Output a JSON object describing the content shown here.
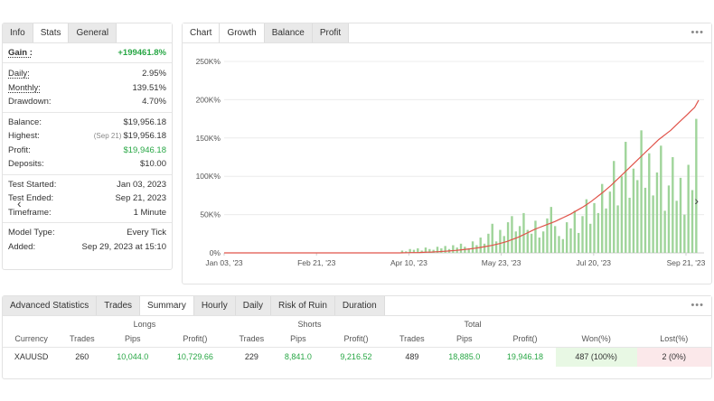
{
  "left_panel": {
    "tabs": [
      "Info",
      "Stats",
      "General"
    ],
    "active_tab": 1,
    "gain": {
      "label": "Gain :",
      "value": "+199461.8%"
    },
    "group1": [
      {
        "label": "Daily:",
        "value": "2.95%",
        "underline": true
      },
      {
        "label": "Monthly:",
        "value": "139.51%",
        "underline": true
      },
      {
        "label": "Drawdown:",
        "value": "4.70%",
        "underline": false
      }
    ],
    "group2": [
      {
        "label": "Balance:",
        "value": "$19,956.18"
      },
      {
        "label": "Highest:",
        "note": "(Sep 21)",
        "value": "$19,956.18"
      },
      {
        "label": "Profit:",
        "value": "$19,946.18",
        "green": true
      },
      {
        "label": "Deposits:",
        "value": "$10.00"
      }
    ],
    "group3": [
      {
        "label": "Test Started:",
        "value": "Jan 03, 2023"
      },
      {
        "label": "Test Ended:",
        "value": "Sep 21, 2023"
      },
      {
        "label": "Timeframe:",
        "value": "1 Minute"
      }
    ],
    "group4": [
      {
        "label": "Model Type:",
        "value": "Every Tick"
      },
      {
        "label": "Added:",
        "value": "Sep 29, 2023 at 15:10"
      }
    ],
    "prev_arrow": "‹"
  },
  "chart_panel": {
    "tabs": [
      "Chart",
      "Growth",
      "Balance",
      "Profit"
    ],
    "active_tab": 1,
    "menu": "•••",
    "next_arrow": "›"
  },
  "chart_data": {
    "type": "line",
    "x_tick_labels": [
      "Jan 03, '23",
      "Feb 21, '23",
      "Apr 10, '23",
      "May 23, '23",
      "Jul 20, '23",
      "Sep 21, '23"
    ],
    "y_tick_labels": [
      "0%",
      "50K%",
      "100K%",
      "150K%",
      "200K%",
      "250K%"
    ],
    "ylim": [
      0,
      250000
    ],
    "grid": true,
    "series": [
      {
        "color": "#e0534a",
        "kind": "line",
        "values": [
          0,
          0,
          0,
          0,
          0,
          0,
          0,
          0,
          0,
          0,
          0,
          0,
          0,
          0,
          0,
          0,
          0,
          0,
          0,
          0,
          0,
          0,
          0,
          0,
          0,
          0,
          0,
          0,
          0,
          0,
          0,
          0,
          0,
          0,
          0,
          0,
          0,
          0,
          0,
          0,
          0,
          0,
          0,
          0,
          0,
          100,
          200,
          300,
          400,
          500,
          700,
          900,
          1100,
          1400,
          1700,
          2000,
          2400,
          2800,
          3200,
          3700,
          4200,
          4800,
          5400,
          6100,
          6900,
          7800,
          8700,
          9700,
          10800,
          12000,
          13500,
          15000,
          17000,
          19000,
          21000,
          23500,
          26000,
          28500,
          31000,
          33000,
          35000,
          37000,
          39000,
          41000,
          43500,
          46000,
          48500,
          51000,
          54000,
          57000,
          60000,
          63500,
          67000,
          71000,
          75000,
          79000,
          83500,
          88000,
          93000,
          98000,
          103000,
          108000,
          113000,
          118000,
          123000,
          128000,
          133000,
          138000,
          143000,
          148000,
          152000,
          156000,
          160000,
          165000,
          170000,
          175000,
          180000,
          185000,
          190000,
          199461
        ]
      },
      {
        "color": "#9fd49a",
        "kind": "bar",
        "values": [
          0,
          0,
          0,
          0,
          0,
          0,
          0,
          0,
          0,
          0,
          0,
          0,
          0,
          0,
          0,
          0,
          0,
          0,
          0,
          0,
          0,
          0,
          0,
          0,
          0,
          0,
          0,
          0,
          0,
          0,
          0,
          0,
          0,
          0,
          0,
          0,
          0,
          0,
          0,
          0,
          0,
          0,
          0,
          0,
          0,
          3000,
          2000,
          5000,
          4000,
          6000,
          3000,
          7000,
          5000,
          4000,
          8000,
          6000,
          9000,
          5000,
          10000,
          7000,
          12000,
          8000,
          6000,
          15000,
          10000,
          20000,
          12000,
          25000,
          38000,
          15000,
          30000,
          22000,
          40000,
          48000,
          28000,
          35000,
          52000,
          30000,
          25000,
          42000,
          20000,
          28000,
          45000,
          60000,
          35000,
          22000,
          18000,
          40000,
          32000,
          55000,
          26000,
          48000,
          70000,
          38000,
          65000,
          52000,
          90000,
          58000,
          80000,
          120000,
          62000,
          100000,
          145000,
          72000,
          110000,
          95000,
          160000,
          85000,
          130000,
          75000,
          105000,
          140000,
          55000,
          88000,
          125000,
          68000,
          98000,
          50000,
          115000,
          82000,
          175000
        ]
      }
    ]
  },
  "adv_panel": {
    "tabs": [
      "Advanced Statistics",
      "Trades",
      "Summary",
      "Hourly",
      "Daily",
      "Risk of Ruin",
      "Duration"
    ],
    "active_tab": 2,
    "menu": "•••",
    "group_headers": [
      "Longs",
      "Shorts",
      "Total"
    ],
    "columns": [
      "Currency",
      "Trades",
      "Pips",
      "Profit()",
      "Trades",
      "Pips",
      "Profit()",
      "Trades",
      "Pips",
      "Profit()",
      "Won(%)",
      "Lost(%)"
    ],
    "row": [
      "XAUUSD",
      "260",
      "10,044.0",
      "10,729.66",
      "229",
      "8,841.0",
      "9,216.52",
      "489",
      "18,885.0",
      "19,946.18",
      "487 (100%)",
      "2 (0%)"
    ]
  }
}
